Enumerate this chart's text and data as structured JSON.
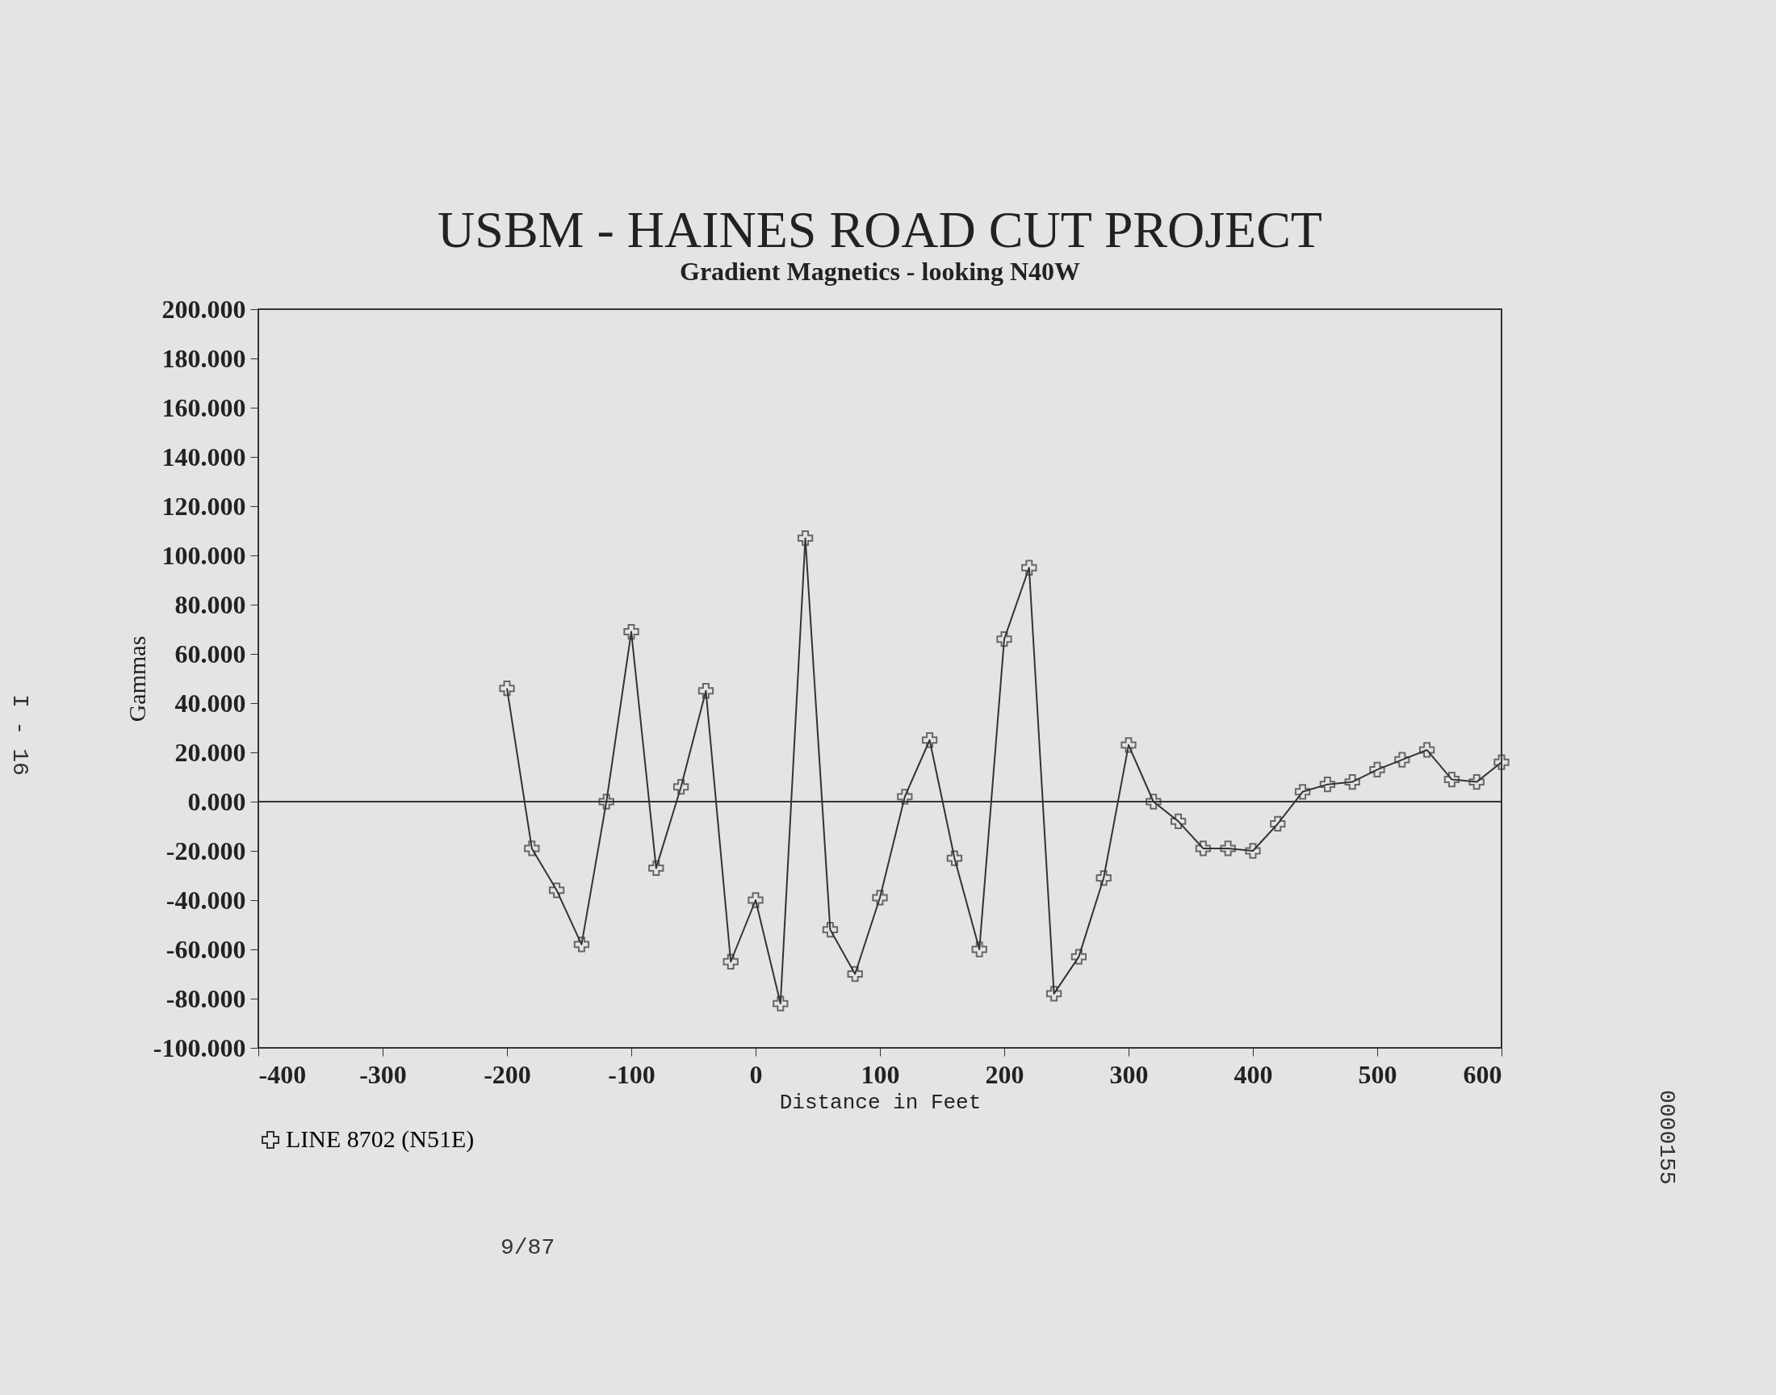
{
  "chart_data": {
    "type": "line",
    "title": "USBM - HAINES ROAD CUT PROJECT",
    "subtitle": "Gradient Magnetics - looking N40W",
    "xlabel": "Distance in Feet",
    "ylabel": "Gammas",
    "x": [
      -200,
      -180,
      -160,
      -140,
      -120,
      -100,
      -80,
      -60,
      -40,
      -20,
      0,
      20,
      40,
      60,
      80,
      100,
      120,
      140,
      160,
      180,
      200,
      220,
      240,
      260,
      280,
      300,
      320,
      340,
      360,
      380,
      400,
      420,
      440,
      460,
      480,
      500,
      520,
      540,
      560,
      580,
      600
    ],
    "series": [
      {
        "name": "LINE 8702 (N51E)",
        "color": "#333333",
        "values": [
          46,
          -19,
          -36,
          -58,
          0,
          69,
          -27,
          6,
          45,
          -65,
          -40,
          -82,
          107,
          -52,
          -70,
          -39,
          2,
          25,
          -23,
          -60,
          66,
          95,
          -78,
          -63,
          -31,
          23,
          0,
          -8,
          -19,
          -19,
          -20,
          -9,
          4,
          7,
          8,
          13,
          17,
          21,
          9,
          8,
          16
        ]
      }
    ],
    "xlim": [
      -400,
      600
    ],
    "xticks": [
      -400,
      -300,
      -200,
      -100,
      0,
      100,
      200,
      300,
      400,
      500,
      600
    ],
    "ylim": [
      -100,
      200
    ],
    "yticks": [
      {
        "value": -100,
        "label": "-100.000"
      },
      {
        "value": -80,
        "label": "-80.000"
      },
      {
        "value": -60,
        "label": "-60.000"
      },
      {
        "value": -40,
        "label": "-40.000"
      },
      {
        "value": -20,
        "label": "-20.000"
      },
      {
        "value": 0,
        "label": "0.000"
      },
      {
        "value": 20,
        "label": "20.000"
      },
      {
        "value": 40,
        "label": "40.000"
      },
      {
        "value": 60,
        "label": "60.000"
      },
      {
        "value": 80,
        "label": "80.000"
      },
      {
        "value": 100,
        "label": "100.000"
      },
      {
        "value": 120,
        "label": "120.000"
      },
      {
        "value": 140,
        "label": "140.000"
      },
      {
        "value": 160,
        "label": "160.000"
      },
      {
        "value": 180,
        "label": "180.000"
      },
      {
        "value": 200,
        "label": "200.000"
      }
    ],
    "ref_lines": [
      {
        "axis": "y",
        "value": 0,
        "color": "#333333"
      }
    ],
    "grid": false,
    "legend": "bottom",
    "marker": "cross",
    "line_style": "solid",
    "annotations": [
      "9/87",
      "I - 16",
      "0000155"
    ]
  }
}
